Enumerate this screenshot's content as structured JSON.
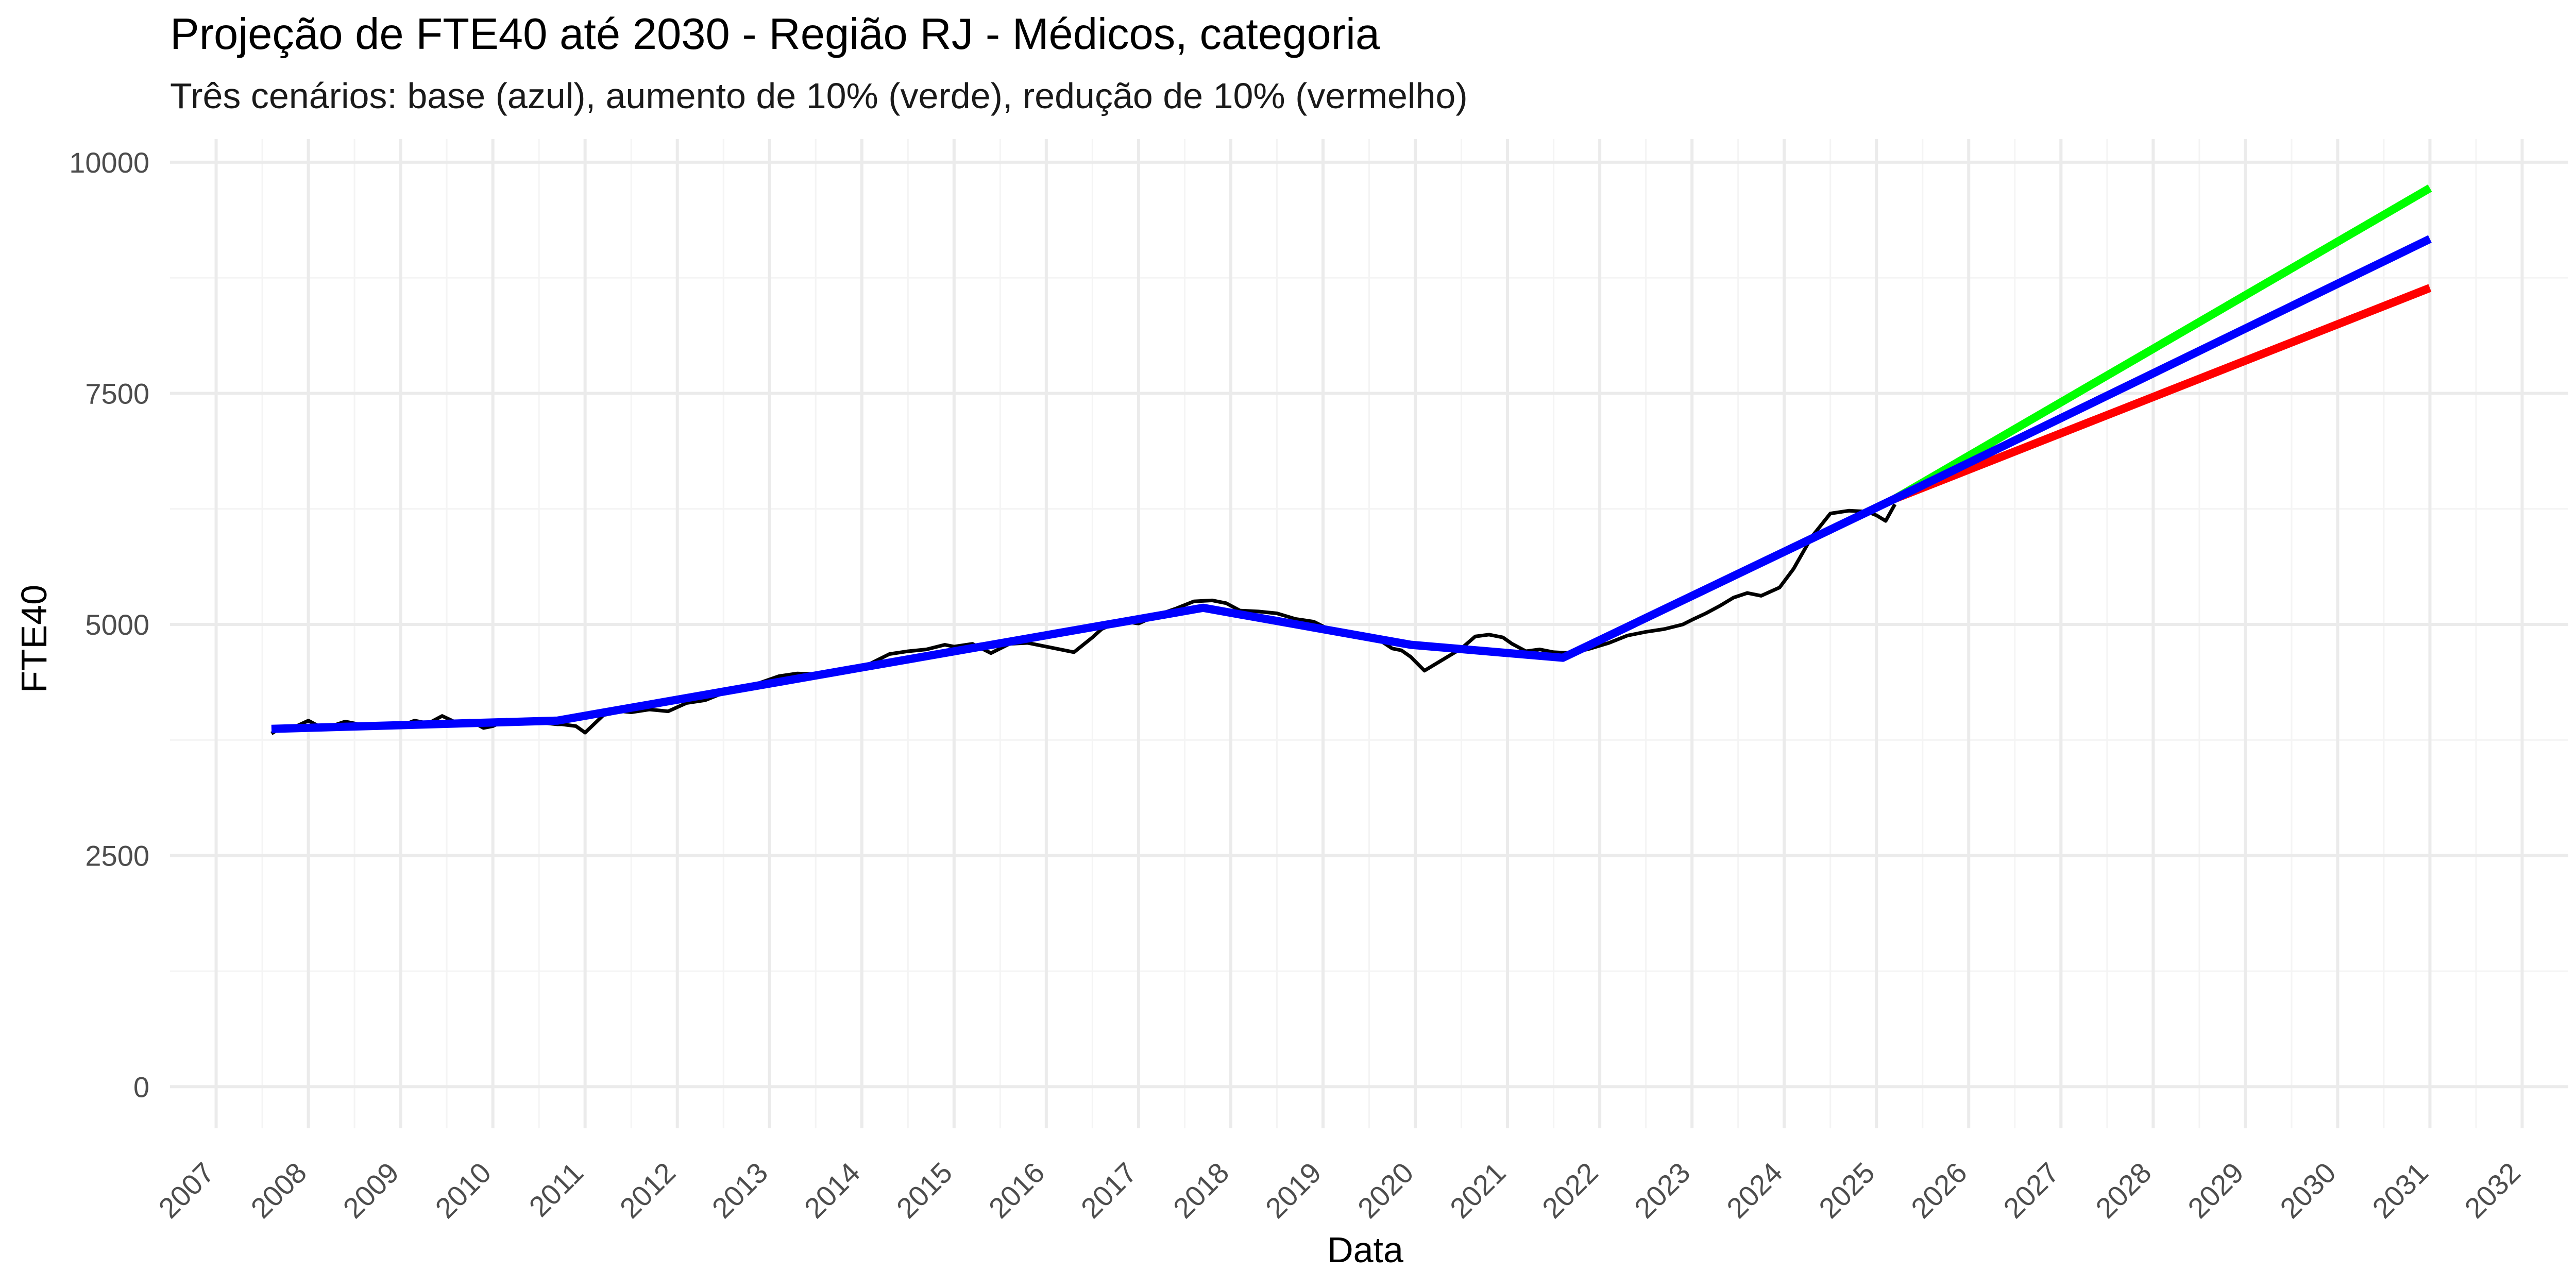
{
  "chart_data": {
    "type": "line",
    "title": "Projeção de FTE40 até 2030 - Região RJ - Médicos, categoria",
    "subtitle": "Três cenários: base (azul), aumento de 10% (verde), redução de 10% (vermelho)",
    "xlabel": "Data",
    "ylabel": "FTE40",
    "xlim": [
      2006.5,
      2032.5
    ],
    "ylim": [
      -450,
      10250
    ],
    "x_ticks": [
      "2007",
      "2008",
      "2009",
      "2010",
      "2011",
      "2012",
      "2013",
      "2014",
      "2015",
      "2016",
      "2017",
      "2018",
      "2019",
      "2020",
      "2021",
      "2022",
      "2023",
      "2024",
      "2025",
      "2026",
      "2027",
      "2028",
      "2029",
      "2030",
      "2031",
      "2032"
    ],
    "y_ticks": [
      0,
      2500,
      5000,
      7500,
      10000
    ],
    "grid": true,
    "legend": "none",
    "colors": {
      "observed": "#000000",
      "base": "#0000ff",
      "increase": "#00ff00",
      "decrease": "#ff0000",
      "grid_major": "#ebebeb",
      "grid_minor": "#f4f4f4",
      "tick_text": "#4d4d4d"
    },
    "series": [
      {
        "key": "observed",
        "x": [
          2007.6,
          2007.7,
          2007.85,
          2008.0,
          2008.15,
          2008.25,
          2008.4,
          2008.55,
          2008.7,
          2008.85,
          2009.0,
          2009.15,
          2009.3,
          2009.45,
          2009.6,
          2009.75,
          2009.9,
          2010.0,
          2010.15,
          2010.3,
          2010.5,
          2010.7,
          2010.75,
          2010.9,
          2011.0,
          2011.2,
          2011.4,
          2011.5,
          2011.7,
          2011.9,
          2012.1,
          2012.3,
          2012.5,
          2012.7,
          2012.9,
          2013.1,
          2013.3,
          2013.6,
          2013.9,
          2014.1,
          2014.3,
          2014.5,
          2014.7,
          2014.9,
          2015.0,
          2015.2,
          2015.4,
          2015.6,
          2015.8,
          2015.95,
          2016.1,
          2016.3,
          2016.5,
          2016.6,
          2016.8,
          2017.0,
          2017.2,
          2017.4,
          2017.6,
          2017.8,
          2017.95,
          2018.1,
          2018.3,
          2018.5,
          2018.7,
          2018.9,
          2019.1,
          2019.3,
          2019.5,
          2019.6,
          2019.75,
          2019.85,
          2019.95,
          2020.1,
          2020.3,
          2020.5,
          2020.65,
          2020.8,
          2020.95,
          2021.05,
          2021.2,
          2021.35,
          2021.5,
          2021.7,
          2021.9,
          2022.1,
          2022.3,
          2022.5,
          2022.7,
          2022.9,
          2023.0,
          2023.15,
          2023.3,
          2023.45,
          2023.6,
          2023.75,
          2023.95,
          2024.1,
          2024.3,
          2024.5,
          2024.7,
          2024.9,
          2025.0,
          2025.1,
          2025.2
        ],
        "values": [
          3820,
          3880,
          3890,
          3960,
          3880,
          3900,
          3950,
          3920,
          3910,
          3930,
          3900,
          3960,
          3930,
          4010,
          3940,
          3960,
          3880,
          3900,
          3970,
          3950,
          3940,
          3920,
          3920,
          3900,
          3830,
          4020,
          4060,
          4050,
          4080,
          4060,
          4150,
          4180,
          4260,
          4320,
          4370,
          4440,
          4470,
          4460,
          4510,
          4580,
          4680,
          4710,
          4730,
          4780,
          4760,
          4790,
          4690,
          4790,
          4800,
          4770,
          4740,
          4700,
          4860,
          4950,
          5040,
          5010,
          5100,
          5170,
          5250,
          5260,
          5230,
          5150,
          5140,
          5120,
          5060,
          5030,
          4930,
          4920,
          4880,
          4840,
          4740,
          4720,
          4650,
          4500,
          4620,
          4740,
          4870,
          4890,
          4860,
          4790,
          4710,
          4730,
          4700,
          4690,
          4740,
          4800,
          4880,
          4920,
          4950,
          5000,
          5050,
          5120,
          5200,
          5290,
          5340,
          5310,
          5400,
          5600,
          5950,
          6200,
          6230,
          6220,
          6180,
          6120,
          6300
        ]
      },
      {
        "key": "base",
        "x": [
          2007.6,
          2010.7,
          2017.7,
          2019.95,
          2021.6,
          2025.2,
          2031.0
        ],
        "values": [
          3870,
          3960,
          5180,
          4780,
          4640,
          6360,
          9170
        ]
      },
      {
        "key": "increase",
        "x": [
          2025.2,
          2031.0
        ],
        "values": [
          6360,
          9720
        ]
      },
      {
        "key": "decrease",
        "x": [
          2025.2,
          2031.0
        ],
        "values": [
          6360,
          8640
        ]
      }
    ]
  }
}
